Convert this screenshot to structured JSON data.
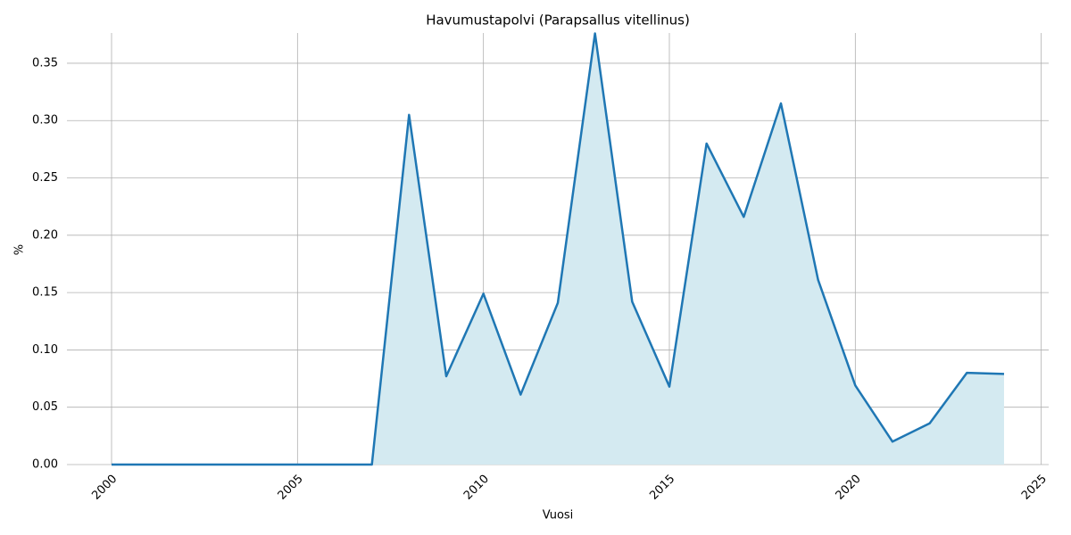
{
  "chart_data": {
    "type": "line",
    "title": "Havumustapolvi (Parapsallus vitellinus)",
    "x_label": "Vuosi",
    "y_label": "%",
    "x": [
      2000,
      2001,
      2002,
      2003,
      2004,
      2005,
      2006,
      2007,
      2008,
      2009,
      2010,
      2011,
      2012,
      2013,
      2014,
      2015,
      2016,
      2017,
      2018,
      2019,
      2020,
      2021,
      2022,
      2023,
      2024
    ],
    "series": [
      {
        "color": "#1f77b4",
        "fill": "#d4eaf1",
        "values": [
          0,
          0,
          0,
          0,
          0,
          0,
          0,
          0,
          0.305,
          0.077,
          0.149,
          0.061,
          0.141,
          0.376,
          0.142,
          0.068,
          0.28,
          0.216,
          0.315,
          0.161,
          0.069,
          0.02,
          0.036,
          0.08,
          0.079
        ]
      }
    ],
    "xlim": [
      1998.8,
      2025.2
    ],
    "xticks": [
      2000,
      2005,
      2010,
      2015,
      2020,
      2025
    ],
    "ylim": [
      0,
      0.3764
    ],
    "yticks": [
      {
        "value": 0,
        "label": "0.00"
      },
      0.05,
      {
        "value": 0.1,
        "label": "0.10"
      },
      0.15,
      {
        "value": 0.2,
        "label": "0.20"
      },
      0.25,
      {
        "value": 0.3,
        "label": "0.30"
      },
      0.35
    ],
    "grid": true
  }
}
